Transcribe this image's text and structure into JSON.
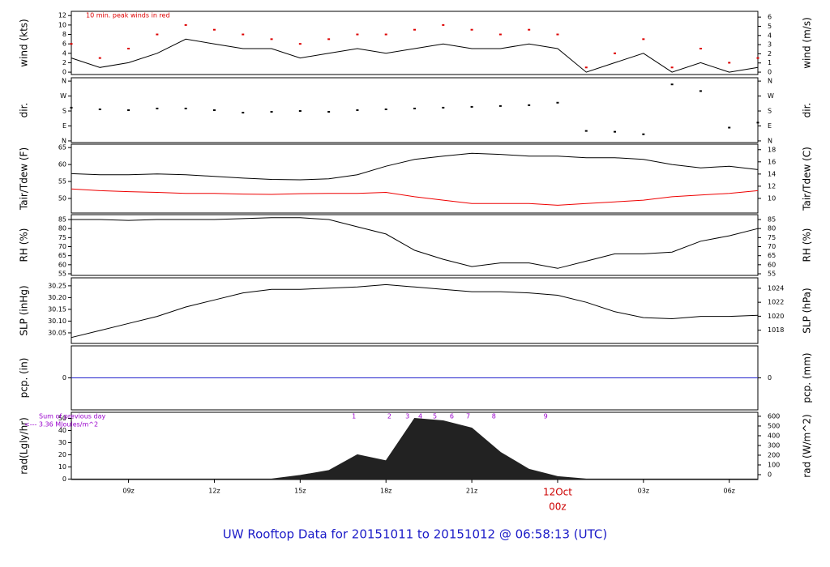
{
  "title": "UW Rooftop Data for 20151011  to  20151012 @ 06:58:13  (UTC)",
  "chart_data": [
    {
      "type": "line",
      "ylabel": "wind (kts)",
      "y2label": "wind (m/s)",
      "note": "10 min. peak winds in red",
      "xlim": [
        7,
        31
      ],
      "ylim": [
        -0.5,
        12.9
      ],
      "yticks": [
        0,
        2,
        4,
        6,
        8,
        10,
        12
      ],
      "y2lim": [
        -0.26,
        6.63
      ],
      "y2ticks": [
        0,
        1,
        2,
        3,
        4,
        5,
        6
      ],
      "x": [
        7,
        8,
        9,
        10,
        11,
        12,
        13,
        14,
        15,
        16,
        17,
        18,
        19,
        20,
        21,
        22,
        23,
        24,
        25,
        26,
        27,
        28,
        29,
        30,
        31
      ],
      "series": [
        {
          "style": "line",
          "color": "#000000",
          "values": [
            3,
            1,
            2,
            4,
            7,
            6,
            5,
            5,
            3,
            4,
            5,
            4,
            5,
            6,
            5,
            5,
            6,
            5,
            0,
            2,
            4,
            0,
            2,
            0,
            1
          ]
        },
        {
          "style": "points",
          "color": "#dd0000",
          "values": [
            6,
            3,
            5,
            8,
            10,
            9,
            8,
            7,
            6,
            7,
            8,
            8,
            9,
            10,
            9,
            8,
            9,
            8,
            1,
            4,
            7,
            1,
            5,
            2,
            3
          ]
        }
      ]
    },
    {
      "type": "scatter",
      "ylabel": "dir.",
      "y2label": "dir.",
      "xlim": [
        7,
        31
      ],
      "ylim": [
        -10,
        380
      ],
      "yticks": [
        {
          "value": 0,
          "label": "N"
        },
        {
          "value": 90,
          "label": "E"
        },
        {
          "value": 180,
          "label": "S"
        },
        {
          "value": 270,
          "label": "W"
        },
        {
          "value": 360,
          "label": "N"
        }
      ],
      "y2lim": [
        -10,
        380
      ],
      "y2ticks": [
        {
          "value": 0,
          "label": "N"
        },
        {
          "value": 90,
          "label": "E"
        },
        {
          "value": 180,
          "label": "S"
        },
        {
          "value": 270,
          "label": "W"
        },
        {
          "value": 360,
          "label": "N"
        }
      ],
      "x": [
        7,
        8,
        9,
        10,
        11,
        12,
        13,
        14,
        15,
        16,
        17,
        18,
        19,
        20,
        21,
        22,
        23,
        24,
        25,
        26,
        27,
        28,
        29,
        30,
        31
      ],
      "series": [
        {
          "style": "points",
          "color": "#000000",
          "values": [
            200,
            190,
            185,
            195,
            195,
            185,
            170,
            175,
            180,
            175,
            185,
            190,
            195,
            200,
            205,
            210,
            215,
            230,
            60,
            55,
            40,
            340,
            300,
            80,
            110
          ]
        }
      ]
    },
    {
      "type": "line",
      "ylabel": "Tair/Tdew (F)",
      "y2label": "Tair/Tdew (C)",
      "xlim": [
        7,
        31
      ],
      "ylim": [
        45.7,
        66
      ],
      "yticks": [
        50,
        55,
        60,
        65
      ],
      "y2lim": [
        7.6,
        18.9
      ],
      "y2ticks": [
        10,
        12,
        14,
        16,
        18
      ],
      "x": [
        7,
        8,
        9,
        10,
        11,
        12,
        13,
        14,
        15,
        16,
        17,
        18,
        19,
        20,
        21,
        22,
        23,
        24,
        25,
        26,
        27,
        28,
        29,
        30,
        31
      ],
      "series": [
        {
          "style": "line",
          "color": "#000000",
          "values": [
            57.3,
            57,
            57,
            57.2,
            57,
            56.5,
            56,
            55.6,
            55.5,
            55.8,
            57,
            59.5,
            61.5,
            62.5,
            63.3,
            63,
            62.5,
            62.5,
            62,
            62,
            61.5,
            60,
            59,
            59.5,
            58.5
          ]
        },
        {
          "style": "line",
          "color": "#ee0000",
          "values": [
            52.8,
            52.3,
            52,
            51.8,
            51.5,
            51.5,
            51.3,
            51.2,
            51.4,
            51.5,
            51.5,
            51.8,
            50.5,
            49.5,
            48.5,
            48.5,
            48.5,
            48,
            48.5,
            49,
            49.5,
            50.5,
            51,
            51.5,
            52.3
          ]
        }
      ]
    },
    {
      "type": "line",
      "ylabel": "RH (%)",
      "y2label": "RH (%)",
      "xlim": [
        7,
        31
      ],
      "ylim": [
        54.1,
        87.7
      ],
      "yticks": [
        55,
        60,
        65,
        70,
        75,
        80,
        85
      ],
      "y2lim": [
        54.1,
        87.7
      ],
      "y2ticks": [
        55,
        60,
        65,
        70,
        75,
        80,
        85
      ],
      "x": [
        7,
        8,
        9,
        10,
        11,
        12,
        13,
        14,
        15,
        16,
        17,
        18,
        19,
        20,
        21,
        22,
        23,
        24,
        25,
        26,
        27,
        28,
        29,
        30,
        31
      ],
      "series": [
        {
          "style": "line",
          "color": "#000000",
          "values": [
            85,
            85,
            84.5,
            85,
            85,
            85,
            85.5,
            86,
            86,
            85,
            81,
            77,
            68,
            63,
            59,
            61,
            61,
            58,
            62,
            66,
            66,
            67,
            73,
            76,
            80
          ]
        }
      ]
    },
    {
      "type": "line",
      "ylabel": "SLP (inHg)",
      "y2label": "SLP (hPa)",
      "xlim": [
        7,
        31
      ],
      "ylim": [
        30.005,
        30.284
      ],
      "yticks": [
        30.05,
        {
          "value": 30.1,
          "label": "30.10"
        },
        30.15,
        {
          "value": 30.2,
          "label": "30.20"
        },
        30.25
      ],
      "y2lim": [
        1016.1,
        1025.5
      ],
      "y2ticks": [
        1018,
        1020,
        1022,
        1024
      ],
      "x": [
        7,
        8,
        9,
        10,
        11,
        12,
        13,
        14,
        15,
        16,
        17,
        18,
        19,
        20,
        21,
        22,
        23,
        24,
        25,
        26,
        27,
        28,
        29,
        30,
        31
      ],
      "series": [
        {
          "style": "line",
          "color": "#000000",
          "values": [
            30.03,
            30.06,
            30.09,
            30.12,
            30.16,
            30.19,
            30.22,
            30.235,
            30.235,
            30.24,
            30.245,
            30.255,
            30.245,
            30.235,
            30.225,
            30.225,
            30.22,
            30.21,
            30.18,
            30.14,
            30.115,
            30.11,
            30.12,
            30.12,
            30.125
          ]
        }
      ]
    },
    {
      "type": "line",
      "ylabel": "pcp. (in)",
      "y2label": "pcp. (mm)",
      "xlim": [
        7,
        31
      ],
      "ylim": [
        -1,
        1
      ],
      "yticks": [
        0
      ],
      "y2lim": [
        -25.4,
        25.4
      ],
      "y2ticks": [
        0
      ],
      "x": [
        7,
        31
      ],
      "series": [
        {
          "style": "line",
          "color": "#2222cc",
          "values": [
            0,
            0
          ]
        }
      ]
    },
    {
      "type": "area",
      "ylabel": "rad(Lgly/hr)",
      "y2label": "rad (W/m^2)",
      "note": "Sum of previous day",
      "note2": "<--- 3.36 MJoules/m^2",
      "xlim": [
        7,
        31
      ],
      "ylim": [
        -0.4,
        55
      ],
      "yticks": [
        0,
        10,
        20,
        30,
        40,
        50
      ],
      "y2lim": [
        -50,
        641
      ],
      "y2ticks": [
        0,
        100,
        200,
        300,
        400,
        500,
        600
      ],
      "xticks": [
        {
          "value": 9,
          "label": "09z"
        },
        {
          "value": 12,
          "label": "12z"
        },
        {
          "value": 15,
          "label": "15z"
        },
        {
          "value": 18,
          "label": "18z"
        },
        {
          "value": 21,
          "label": "21z"
        },
        {
          "value": 24,
          "label": "00z",
          "date": "12Oct",
          "color": "#cc0000"
        },
        {
          "value": 27,
          "label": "03z"
        },
        {
          "value": 30,
          "label": "06z"
        }
      ],
      "x": [
        7,
        8,
        9,
        10,
        11,
        12,
        13,
        14,
        15,
        16,
        17,
        18,
        19,
        20,
        21,
        22,
        23,
        24,
        25,
        26,
        27,
        28,
        29,
        30,
        31
      ],
      "series": [
        {
          "style": "area",
          "color": "#222222",
          "values": [
            0,
            0,
            0,
            0,
            0,
            0,
            0,
            0,
            3,
            7,
            20,
            15,
            50,
            48,
            42,
            22,
            8,
            2,
            0,
            0,
            0,
            0,
            0,
            0,
            0
          ]
        }
      ],
      "markers": {
        "color": "#9900cc",
        "labels": [
          "1",
          "2",
          "3",
          "4",
          "5",
          "6",
          "7",
          "8",
          "9"
        ],
        "x": [
          16.88,
          18.12,
          18.75,
          19.2,
          19.71,
          20.3,
          20.87,
          21.77,
          23.58
        ]
      }
    }
  ]
}
